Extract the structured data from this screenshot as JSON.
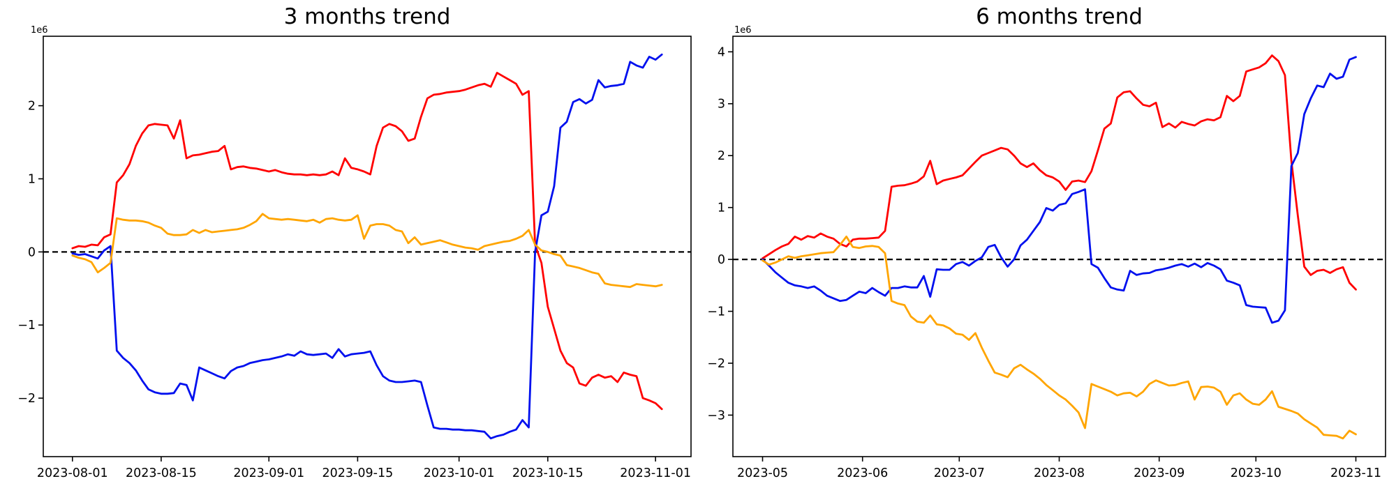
{
  "figure": {
    "background": "#ffffff",
    "text_color": "#000000",
    "zero_line_color": "#000000",
    "series_colors": {
      "red": "#ff0000",
      "blue": "#0010ee",
      "orange": "#ffa500"
    }
  },
  "chart_data": [
    {
      "type": "line",
      "title": "3 months trend",
      "offset_label": "1e6",
      "xlabel": "",
      "ylabel": "",
      "grid": false,
      "legend": "none",
      "zero_line_dashed": true,
      "x_start_date": "2023-08-01",
      "x_step_days": 1,
      "xlim": [
        -4.6,
        97.6
      ],
      "ylim": [
        -2.8,
        2.95
      ],
      "y_ticks": [
        -2,
        -1,
        0,
        1,
        2
      ],
      "x_ticks": [
        {
          "pos": 0,
          "label": "2023-08-01"
        },
        {
          "pos": 14,
          "label": "2023-08-15"
        },
        {
          "pos": 31,
          "label": "2023-09-01"
        },
        {
          "pos": 45,
          "label": "2023-09-15"
        },
        {
          "pos": 61,
          "label": "2023-10-01"
        },
        {
          "pos": 75,
          "label": "2023-10-15"
        },
        {
          "pos": 92,
          "label": "2023-11-01"
        }
      ],
      "series": [
        {
          "name": "red",
          "color": "#ff0000",
          "values": [
            0.05,
            0.08,
            0.07,
            0.1,
            0.09,
            0.2,
            0.24,
            0.95,
            1.05,
            1.2,
            1.45,
            1.62,
            1.73,
            1.75,
            1.74,
            1.73,
            1.55,
            1.8,
            1.28,
            1.32,
            1.33,
            1.35,
            1.37,
            1.38,
            1.45,
            1.13,
            1.16,
            1.17,
            1.15,
            1.14,
            1.12,
            1.1,
            1.12,
            1.09,
            1.07,
            1.06,
            1.06,
            1.05,
            1.06,
            1.05,
            1.06,
            1.1,
            1.05,
            1.28,
            1.15,
            1.13,
            1.1,
            1.06,
            1.45,
            1.7,
            1.75,
            1.72,
            1.65,
            1.52,
            1.55,
            1.85,
            2.1,
            2.15,
            2.16,
            2.18,
            2.19,
            2.2,
            2.22,
            2.25,
            2.28,
            2.3,
            2.26,
            2.45,
            2.4,
            2.35,
            2.3,
            2.15,
            2.2,
            0.1,
            -0.15,
            -0.75,
            -1.05,
            -1.35,
            -1.52,
            -1.58,
            -1.8,
            -1.83,
            -1.72,
            -1.68,
            -1.72,
            -1.7,
            -1.78,
            -1.65,
            -1.68,
            -1.7,
            -2.0,
            -2.03,
            -2.07,
            -2.15
          ]
        },
        {
          "name": "blue",
          "color": "#0010ee",
          "values": [
            -0.02,
            -0.04,
            -0.03,
            -0.06,
            -0.09,
            0.02,
            0.08,
            -1.35,
            -1.45,
            -1.52,
            -1.62,
            -1.76,
            -1.88,
            -1.92,
            -1.94,
            -1.94,
            -1.93,
            -1.8,
            -1.82,
            -2.03,
            -1.58,
            -1.62,
            -1.66,
            -1.7,
            -1.73,
            -1.63,
            -1.58,
            -1.56,
            -1.52,
            -1.5,
            -1.48,
            -1.47,
            -1.45,
            -1.43,
            -1.4,
            -1.42,
            -1.36,
            -1.4,
            -1.41,
            -1.4,
            -1.39,
            -1.45,
            -1.33,
            -1.43,
            -1.4,
            -1.39,
            -1.38,
            -1.36,
            -1.55,
            -1.7,
            -1.76,
            -1.78,
            -1.78,
            -1.77,
            -1.76,
            -1.78,
            -2.1,
            -2.4,
            -2.42,
            -2.42,
            -2.43,
            -2.43,
            -2.44,
            -2.44,
            -2.45,
            -2.46,
            -2.55,
            -2.52,
            -2.5,
            -2.46,
            -2.43,
            -2.3,
            -2.4,
            0.0,
            0.5,
            0.55,
            0.9,
            1.7,
            1.78,
            2.05,
            2.09,
            2.03,
            2.08,
            2.35,
            2.25,
            2.27,
            2.28,
            2.3,
            2.6,
            2.55,
            2.52,
            2.67,
            2.63,
            2.7
          ]
        },
        {
          "name": "orange",
          "color": "#ffa500",
          "values": [
            -0.05,
            -0.08,
            -0.1,
            -0.14,
            -0.28,
            -0.22,
            -0.15,
            0.46,
            0.44,
            0.43,
            0.43,
            0.42,
            0.4,
            0.36,
            0.33,
            0.25,
            0.23,
            0.23,
            0.24,
            0.3,
            0.26,
            0.3,
            0.27,
            0.28,
            0.29,
            0.3,
            0.31,
            0.33,
            0.37,
            0.42,
            0.52,
            0.46,
            0.45,
            0.44,
            0.45,
            0.44,
            0.43,
            0.42,
            0.44,
            0.4,
            0.45,
            0.46,
            0.44,
            0.43,
            0.44,
            0.5,
            0.18,
            0.36,
            0.38,
            0.38,
            0.36,
            0.3,
            0.28,
            0.12,
            0.2,
            0.1,
            0.12,
            0.14,
            0.16,
            0.13,
            0.1,
            0.08,
            0.06,
            0.05,
            0.03,
            0.08,
            0.1,
            0.12,
            0.14,
            0.15,
            0.18,
            0.22,
            0.3,
            0.1,
            0.02,
            0.0,
            -0.03,
            -0.05,
            -0.18,
            -0.2,
            -0.22,
            -0.25,
            -0.28,
            -0.3,
            -0.43,
            -0.45,
            -0.46,
            -0.47,
            -0.48,
            -0.44,
            -0.45,
            -0.46,
            -0.47,
            -0.45
          ]
        }
      ]
    },
    {
      "type": "line",
      "title": "6 months trend",
      "offset_label": "1e6",
      "xlabel": "",
      "ylabel": "",
      "grid": false,
      "legend": "none",
      "zero_line_dashed": true,
      "x_start_date": "2023-05-01",
      "x_step_days": 2,
      "xlim": [
        -9.2,
        193.2
      ],
      "ylim": [
        -3.8,
        4.3
      ],
      "y_ticks": [
        -3,
        -2,
        -1,
        0,
        1,
        2,
        3,
        4
      ],
      "x_ticks": [
        {
          "pos": 0,
          "label": "2023-05"
        },
        {
          "pos": 31,
          "label": "2023-06"
        },
        {
          "pos": 61,
          "label": "2023-07"
        },
        {
          "pos": 92,
          "label": "2023-08"
        },
        {
          "pos": 123,
          "label": "2023-09"
        },
        {
          "pos": 153,
          "label": "2023-10"
        },
        {
          "pos": 184,
          "label": "2023-11"
        }
      ],
      "series": [
        {
          "name": "red",
          "color": "#ff0000",
          "values": [
            0.02,
            0.1,
            0.18,
            0.25,
            0.3,
            0.44,
            0.38,
            0.45,
            0.42,
            0.5,
            0.44,
            0.4,
            0.3,
            0.25,
            0.38,
            0.4,
            0.4,
            0.41,
            0.42,
            0.55,
            1.4,
            1.42,
            1.43,
            1.46,
            1.5,
            1.6,
            1.9,
            1.45,
            1.52,
            1.55,
            1.58,
            1.62,
            1.75,
            1.88,
            2.0,
            2.05,
            2.1,
            2.15,
            2.12,
            2.0,
            1.85,
            1.78,
            1.85,
            1.72,
            1.62,
            1.58,
            1.5,
            1.34,
            1.5,
            1.52,
            1.49,
            1.7,
            2.1,
            2.52,
            2.62,
            3.12,
            3.22,
            3.24,
            3.1,
            2.98,
            2.95,
            3.02,
            2.55,
            2.62,
            2.54,
            2.65,
            2.61,
            2.58,
            2.66,
            2.7,
            2.68,
            2.74,
            3.15,
            3.05,
            3.15,
            3.62,
            3.66,
            3.7,
            3.78,
            3.93,
            3.82,
            3.55,
            1.9,
            0.85,
            -0.14,
            -0.3,
            -0.22,
            -0.2,
            -0.26,
            -0.19,
            -0.15,
            -0.45,
            -0.58
          ]
        },
        {
          "name": "blue",
          "color": "#0010ee",
          "values": [
            0.0,
            -0.12,
            -0.25,
            -0.35,
            -0.45,
            -0.5,
            -0.52,
            -0.55,
            -0.52,
            -0.6,
            -0.7,
            -0.75,
            -0.8,
            -0.78,
            -0.7,
            -0.62,
            -0.65,
            -0.55,
            -0.63,
            -0.7,
            -0.55,
            -0.55,
            -0.52,
            -0.54,
            -0.54,
            -0.32,
            -0.72,
            -0.19,
            -0.2,
            -0.2,
            -0.09,
            -0.05,
            -0.12,
            -0.03,
            0.04,
            0.24,
            0.28,
            0.04,
            -0.14,
            0.0,
            0.27,
            0.38,
            0.55,
            0.72,
            0.99,
            0.94,
            1.05,
            1.08,
            1.26,
            1.3,
            1.35,
            -0.09,
            -0.16,
            -0.36,
            -0.54,
            -0.58,
            -0.6,
            -0.22,
            -0.3,
            -0.27,
            -0.26,
            -0.21,
            -0.19,
            -0.16,
            -0.12,
            -0.09,
            -0.14,
            -0.08,
            -0.15,
            -0.07,
            -0.12,
            -0.19,
            -0.41,
            -0.45,
            -0.5,
            -0.88,
            -0.91,
            -0.92,
            -0.93,
            -1.22,
            -1.18,
            -0.98,
            1.8,
            2.05,
            2.8,
            3.1,
            3.35,
            3.32,
            3.58,
            3.48,
            3.52,
            3.85,
            3.9
          ]
        },
        {
          "name": "orange",
          "color": "#ffa500",
          "values": [
            -0.02,
            -0.1,
            -0.06,
            0.0,
            0.06,
            0.03,
            0.06,
            0.08,
            0.1,
            0.12,
            0.13,
            0.14,
            0.28,
            0.44,
            0.24,
            0.22,
            0.25,
            0.26,
            0.24,
            0.12,
            -0.8,
            -0.85,
            -0.88,
            -1.1,
            -1.2,
            -1.22,
            -1.08,
            -1.25,
            -1.27,
            -1.33,
            -1.43,
            -1.45,
            -1.55,
            -1.42,
            -1.7,
            -1.95,
            -2.18,
            -2.22,
            -2.27,
            -2.1,
            -2.03,
            -2.12,
            -2.2,
            -2.3,
            -2.42,
            -2.52,
            -2.62,
            -2.7,
            -2.82,
            -2.95,
            -3.25,
            -2.4,
            -2.45,
            -2.5,
            -2.55,
            -2.62,
            -2.58,
            -2.57,
            -2.64,
            -2.55,
            -2.4,
            -2.33,
            -2.38,
            -2.43,
            -2.42,
            -2.38,
            -2.35,
            -2.7,
            -2.46,
            -2.45,
            -2.47,
            -2.55,
            -2.8,
            -2.62,
            -2.58,
            -2.7,
            -2.78,
            -2.8,
            -2.7,
            -2.54,
            -2.84,
            -2.88,
            -2.92,
            -2.97,
            -3.08,
            -3.16,
            -3.24,
            -3.38,
            -3.39,
            -3.4,
            -3.45,
            -3.3,
            -3.37
          ]
        }
      ]
    }
  ]
}
